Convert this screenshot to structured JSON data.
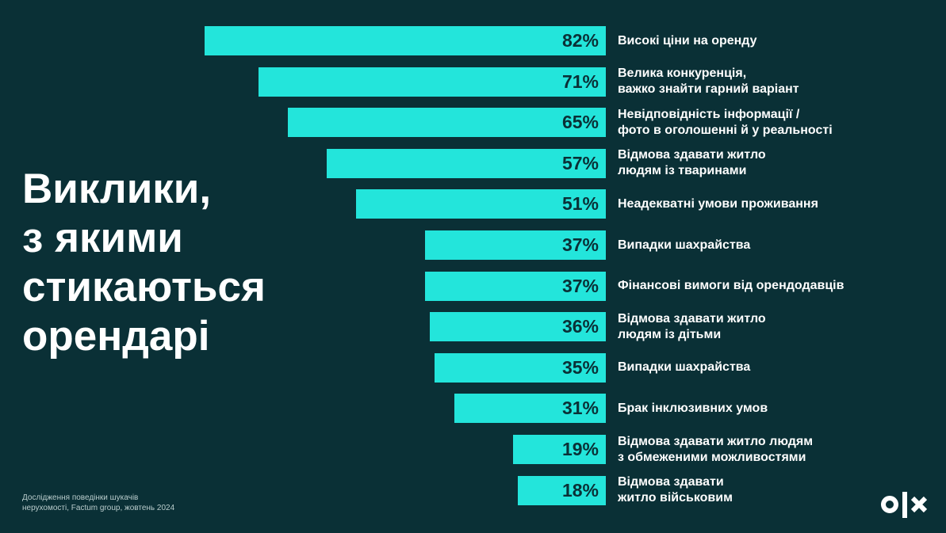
{
  "title": "Виклики,\nз якими\nстикаються\nорендарі",
  "source": "Дослідження поведінки шукачів\nнерухомості, Factum group, жовтень 2024",
  "logo": "OLX",
  "colors": {
    "background": "#0a3036",
    "bar": "#23e5db",
    "value_text": "#0a3036"
  },
  "chart_data": {
    "type": "bar",
    "orientation": "horizontal",
    "unit": "%",
    "categories": [
      "Високі ціни на оренду",
      "Велика конкуренція,\nважко знайти гарний варіант",
      "Невідповідність інформації /\nфото в оголошенні й у реальності",
      "Відмова здавати житло\nлюдям із тваринами",
      "Неадекватні умови проживання",
      "Випадки шахрайства",
      "Фінансові вимоги від орендодавців",
      "Відмова здавати житло\nлюдям із дітьми",
      "Випадки шахрайства",
      "Брак інклюзивних умов",
      "Відмова здавати житло людям\nз обмеженими можливостями",
      "Відмова здавати\nжитло військовим"
    ],
    "values": [
      82,
      71,
      65,
      57,
      51,
      37,
      37,
      36,
      35,
      31,
      19,
      18
    ],
    "value_labels": [
      "82%",
      "71%",
      "65%",
      "57%",
      "51%",
      "37%",
      "37%",
      "36%",
      "35%",
      "31%",
      "19%",
      "18%"
    ]
  }
}
